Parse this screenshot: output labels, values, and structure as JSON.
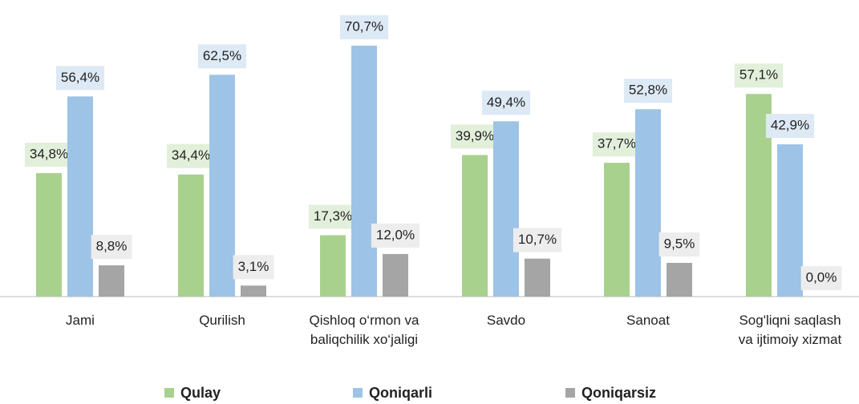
{
  "chart_data": {
    "type": "bar",
    "categories": [
      "Jami",
      "Qurilish",
      "Qishloq o‘rmon va\nbaliqchilik xo‘jaligi",
      "Savdo",
      "Sanoat",
      "Sog'liqni saqlash\nva ijtimoiy xizmat"
    ],
    "series": [
      {
        "name": "Qulay",
        "color": "#a9d18e",
        "label_bg": "#e2efda",
        "values": [
          34.8,
          34.4,
          17.3,
          39.9,
          37.7,
          57.1
        ],
        "value_labels": [
          "34,8%",
          "34,4%",
          "17,3%",
          "39,9%",
          "37,7%",
          "57,1%"
        ]
      },
      {
        "name": "Qoniqarli",
        "color": "#9dc3e6",
        "label_bg": "#dde9f5",
        "values": [
          56.4,
          62.5,
          70.7,
          49.4,
          52.8,
          42.9
        ],
        "value_labels": [
          "56,4%",
          "62,5%",
          "70,7%",
          "49,4%",
          "52,8%",
          "42,9%"
        ]
      },
      {
        "name": "Qoniqarsiz",
        "color": "#a5a5a5",
        "label_bg": "#ededed",
        "values": [
          8.8,
          3.1,
          12.0,
          10.7,
          9.5,
          0.0
        ],
        "value_labels": [
          "8,8%",
          "3,1%",
          "12,0%",
          "10,7%",
          "9,5%",
          "0,0%"
        ]
      }
    ],
    "legend": "bottom"
  }
}
